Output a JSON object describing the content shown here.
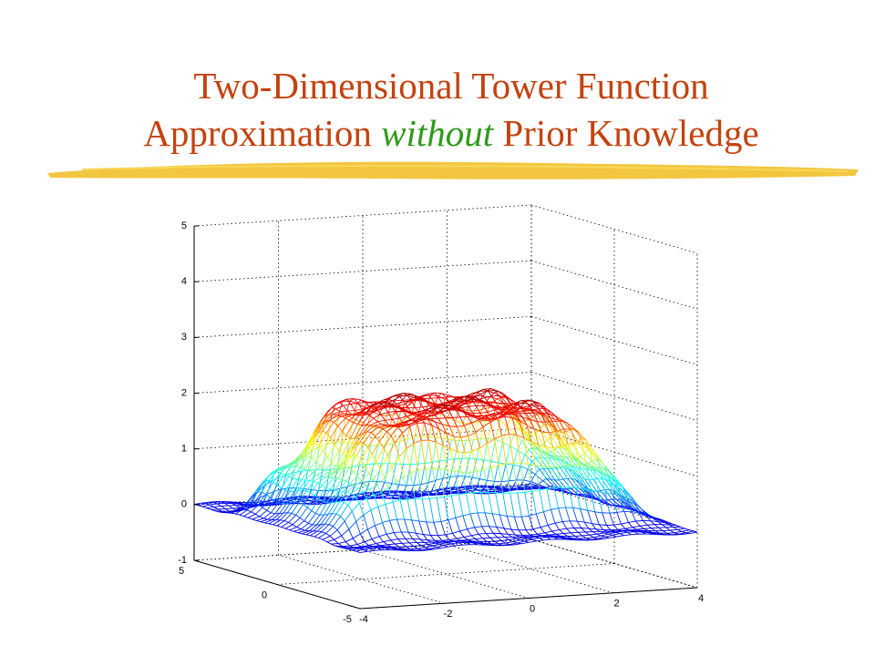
{
  "title": {
    "line1": "Two-Dimensional Tower Function",
    "line2_start": "Approximation",
    "line2_emphasis": "without",
    "line2_end": "Prior Knowledge"
  },
  "chart_data": {
    "type": "surface",
    "xlim": [
      -4,
      4
    ],
    "xticks": [
      -4,
      -2,
      0,
      2,
      4
    ],
    "ylim": [
      -5,
      5
    ],
    "yticks": [
      -5,
      0,
      5
    ],
    "zlim": [
      -1,
      5
    ],
    "zticks": [
      -1,
      0,
      1,
      2,
      3,
      4,
      5
    ],
    "grid": true,
    "colormap": "jet"
  }
}
